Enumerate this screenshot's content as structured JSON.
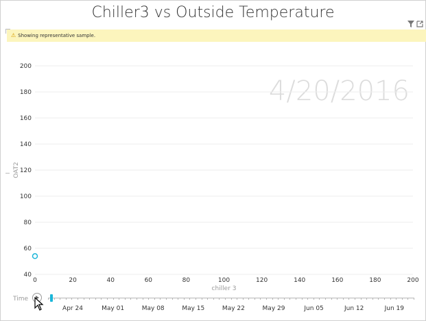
{
  "title": "Chiller3 vs Outside Temperature",
  "banner": {
    "icon": "warning-icon",
    "text": "Showing representative sample."
  },
  "header_icons": [
    "filter-icon",
    "focus-mode-icon"
  ],
  "play_axis_value": "4/20/2016",
  "chart_data": {
    "type": "scatter",
    "xlabel": "chiller 3",
    "ylabel": "OAT2",
    "xlim": [
      0,
      200
    ],
    "ylim": [
      40,
      200
    ],
    "x_ticks": [
      0,
      20,
      40,
      60,
      80,
      100,
      120,
      140,
      160,
      180,
      200
    ],
    "y_ticks": [
      40,
      60,
      80,
      100,
      120,
      140,
      160,
      180,
      200
    ],
    "grid": true,
    "points": [
      {
        "x": 0,
        "y": 54
      }
    ],
    "point_color": "#1ab6d9"
  },
  "timeline": {
    "label": "Time",
    "play_icon": "play-icon",
    "dates": [
      "Apr 24",
      "May 01",
      "May 08",
      "May 15",
      "May 22",
      "May 29",
      "Jun 05",
      "Jun 12",
      "Jun 19"
    ],
    "accent": "#1ab6d9"
  }
}
